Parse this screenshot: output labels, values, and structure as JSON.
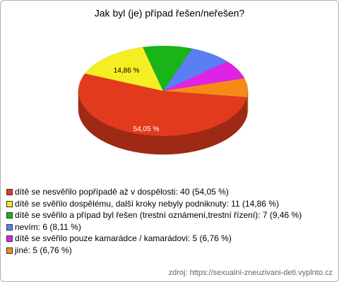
{
  "chart_data": {
    "type": "pie3d",
    "title": "Jak byl (je) případ řešen/neřešen?",
    "categories": [
      "dítě se nesvěřilo popřípadě až v dospělosti: 40 (54,05 %)",
      "dítě se svěřilo dospělému, další kroky nebyly podniknuty: 11 (14,86 %)",
      "dítě se svěřilo a případ byl řešen (trestní oznámení,trestní řízení): 7 (9,46 %)",
      "nevím: 6 (8,11 %)",
      "dítě se svěřilo pouze kamarádce / kamarádovi: 5 (6,76 %)",
      "jiné: 5 (6,76 %)"
    ],
    "values": [
      40,
      11,
      7,
      6,
      5,
      5
    ],
    "value_labels": [
      "54,05 %",
      "14,86 %",
      null,
      null,
      null,
      null
    ],
    "colors": [
      "#e23a1c",
      "#f5ee24",
      "#18b418",
      "#5b7ef5",
      "#df22e6",
      "#f78a16"
    ],
    "source": "zdroj: https://sexualni-zneuzivani-deti.vyplnto.cz"
  }
}
